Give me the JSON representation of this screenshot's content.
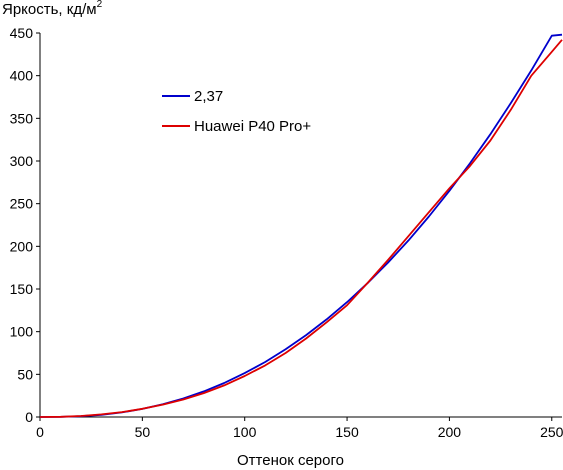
{
  "chart_data": {
    "type": "line",
    "ylabel_main": "Яркость, кд/м",
    "ylabel_sup": "2",
    "xlabel": "Оттенок серого",
    "xlim": [
      0,
      255
    ],
    "ylim": [
      0,
      450
    ],
    "xticks": [
      0,
      50,
      100,
      150,
      200,
      250
    ],
    "yticks": [
      0,
      50,
      100,
      150,
      200,
      250,
      300,
      350,
      400,
      450
    ],
    "grid": false,
    "legend_position": "top-left inside",
    "series": [
      {
        "name": "2,37",
        "color": "#0000cc",
        "x": [
          0,
          10,
          20,
          30,
          40,
          50,
          60,
          70,
          80,
          90,
          100,
          110,
          120,
          130,
          140,
          150,
          160,
          170,
          180,
          190,
          200,
          210,
          220,
          230,
          240,
          250,
          255
        ],
        "y": [
          0,
          0.1,
          0.9,
          2.6,
          5.4,
          9.5,
          14.9,
          21.7,
          30.0,
          39.9,
          51.4,
          64.5,
          79.4,
          96.0,
          114.4,
          134.7,
          156.8,
          180.9,
          207.0,
          235.0,
          265.1,
          297.2,
          331.4,
          367.8,
          406.2,
          446.8,
          448
        ]
      },
      {
        "name": "Huawei P40 Pro+",
        "color": "#dd0000",
        "x": [
          0,
          10,
          20,
          30,
          40,
          50,
          60,
          70,
          80,
          90,
          100,
          110,
          120,
          130,
          140,
          150,
          160,
          170,
          180,
          190,
          200,
          210,
          220,
          230,
          240,
          250,
          255
        ],
        "y": [
          0,
          0.2,
          1.2,
          3.0,
          5.8,
          9.6,
          14.5,
          20.5,
          28.0,
          37.0,
          48.0,
          60.5,
          75.0,
          92.0,
          111.0,
          131.0,
          157.0,
          184.0,
          212.0,
          240.0,
          268.0,
          294.0,
          324.0,
          360.0,
          400.0,
          428.0,
          442
        ]
      }
    ]
  }
}
